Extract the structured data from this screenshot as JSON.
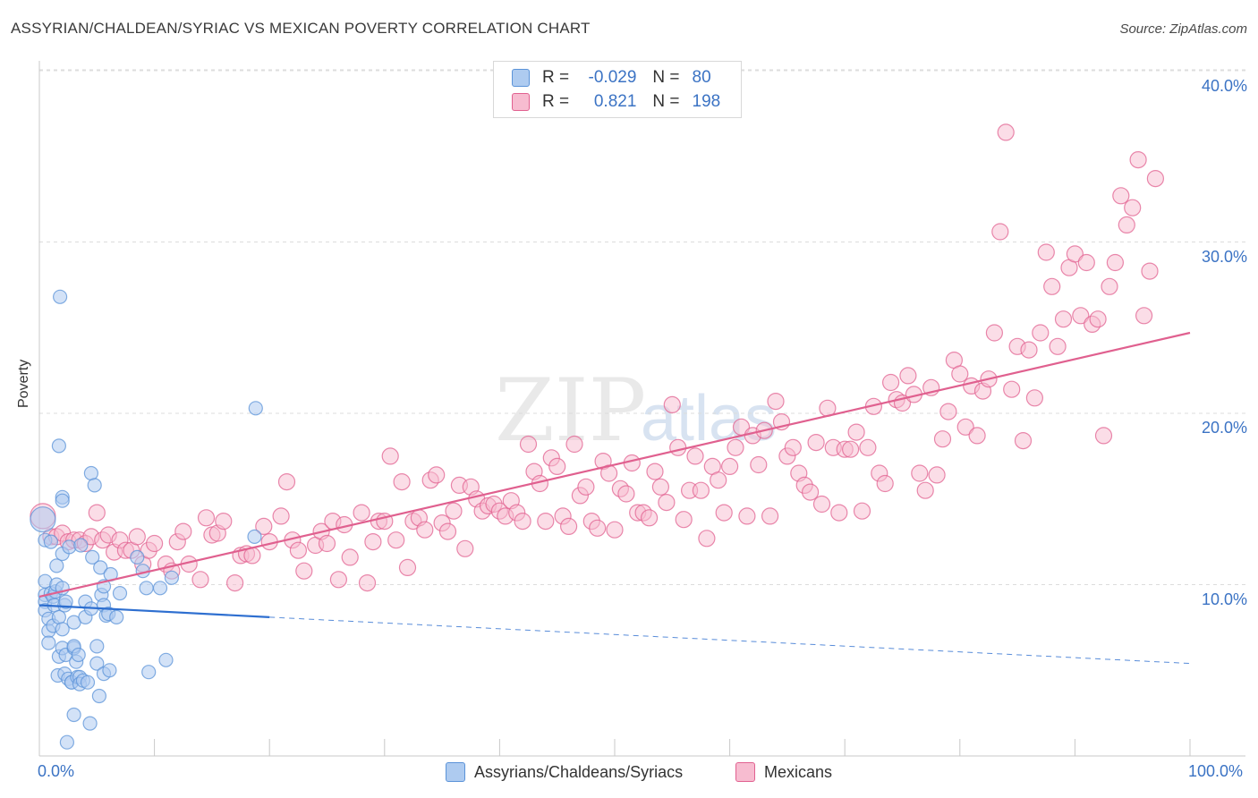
{
  "title": "ASSYRIAN/CHALDEAN/SYRIAC VS MEXICAN POVERTY CORRELATION CHART",
  "source": "Source: ZipAtlas.com",
  "watermark": {
    "zip": "ZIP",
    "atlas": "atlas"
  },
  "legend": {
    "r_label": "R =",
    "n_label": "N =",
    "rows": [
      {
        "r": "-0.029",
        "n": "80",
        "color": "#aecbf0"
      },
      {
        "r": "0.821",
        "n": "198",
        "color": "#f7bcd0"
      }
    ]
  },
  "bottom_legend": [
    {
      "label": "Assyrians/Chaldeans/Syriacs",
      "color": "#aecbf0"
    },
    {
      "label": "Mexicans",
      "color": "#f7bcd0"
    }
  ],
  "chart_data": {
    "type": "scatter",
    "xlabel": "",
    "ylabel": "Poverty",
    "xlim": [
      0,
      100
    ],
    "ylim": [
      0,
      40.0
    ],
    "x_tick_labels": [
      "0.0%",
      "100.0%"
    ],
    "y_tick_labels": [
      "10.0%",
      "20.0%",
      "30.0%",
      "40.0%"
    ],
    "y_ticks": [
      10,
      20,
      30,
      40
    ],
    "series": [
      {
        "name": "Assyrians/Chaldeans/Syriacs",
        "color": "#5b93d8",
        "fill": "#aecbf0",
        "trend": {
          "x0": 0,
          "y0": 8.8,
          "x1": 20,
          "y1": 8.1,
          "dash_to": 100,
          "dash_y": 5.4
        },
        "points": [
          [
            0.3,
            13.8
          ],
          [
            0.5,
            12.6
          ],
          [
            0.5,
            10.2
          ],
          [
            0.5,
            9.4
          ],
          [
            0.5,
            9.0
          ],
          [
            0.5,
            8.5
          ],
          [
            0.8,
            8.0
          ],
          [
            0.8,
            7.3
          ],
          [
            0.8,
            6.6
          ],
          [
            1.0,
            12.5
          ],
          [
            1.0,
            9.5
          ],
          [
            1.2,
            7.6
          ],
          [
            1.2,
            9.3
          ],
          [
            1.3,
            8.8
          ],
          [
            1.4,
            9.6
          ],
          [
            1.5,
            10.0
          ],
          [
            1.5,
            11.1
          ],
          [
            1.6,
            4.7
          ],
          [
            1.7,
            8.1
          ],
          [
            1.7,
            5.8
          ],
          [
            1.7,
            18.1
          ],
          [
            1.8,
            26.8
          ],
          [
            2.0,
            15.1
          ],
          [
            2.0,
            14.9
          ],
          [
            2.0,
            11.8
          ],
          [
            2.0,
            9.8
          ],
          [
            2.0,
            7.4
          ],
          [
            2.0,
            6.3
          ],
          [
            2.2,
            8.8
          ],
          [
            2.2,
            4.8
          ],
          [
            2.3,
            5.9
          ],
          [
            2.3,
            9.0
          ],
          [
            2.4,
            0.8
          ],
          [
            2.5,
            4.5
          ],
          [
            2.6,
            12.2
          ],
          [
            2.8,
            4.3
          ],
          [
            2.8,
            4.3
          ],
          [
            3.0,
            6.3
          ],
          [
            3.0,
            6.4
          ],
          [
            3.0,
            2.4
          ],
          [
            3.0,
            7.8
          ],
          [
            3.2,
            5.5
          ],
          [
            3.3,
            4.6
          ],
          [
            3.4,
            5.9
          ],
          [
            3.5,
            4.6
          ],
          [
            3.5,
            4.2
          ],
          [
            3.6,
            12.3
          ],
          [
            3.8,
            4.4
          ],
          [
            4.0,
            9.0
          ],
          [
            4.0,
            8.1
          ],
          [
            4.2,
            4.3
          ],
          [
            4.4,
            1.9
          ],
          [
            4.5,
            16.5
          ],
          [
            4.5,
            8.6
          ],
          [
            4.6,
            11.6
          ],
          [
            4.8,
            15.8
          ],
          [
            5.0,
            6.4
          ],
          [
            5.0,
            5.4
          ],
          [
            5.2,
            3.5
          ],
          [
            5.3,
            11.0
          ],
          [
            5.4,
            9.4
          ],
          [
            5.6,
            9.9
          ],
          [
            5.6,
            8.8
          ],
          [
            5.6,
            4.8
          ],
          [
            5.8,
            8.2
          ],
          [
            6.0,
            8.3
          ],
          [
            6.1,
            5.0
          ],
          [
            6.2,
            10.6
          ],
          [
            6.7,
            8.1
          ],
          [
            7.0,
            9.5
          ],
          [
            8.5,
            11.6
          ],
          [
            9.0,
            10.8
          ],
          [
            9.3,
            9.8
          ],
          [
            9.5,
            4.9
          ],
          [
            10.5,
            9.8
          ],
          [
            11.0,
            5.6
          ],
          [
            11.5,
            10.4
          ],
          [
            18.7,
            12.8
          ],
          [
            18.8,
            20.3
          ]
        ]
      },
      {
        "name": "Mexicans",
        "color": "#e16190",
        "fill": "#f7bcd0",
        "trend": {
          "x0": 0,
          "y0": 9.3,
          "x1": 100,
          "y1": 24.7
        },
        "points": [
          [
            0.3,
            14.0
          ],
          [
            1.0,
            12.8
          ],
          [
            1.5,
            12.8
          ],
          [
            2.0,
            13.0
          ],
          [
            2.5,
            12.5
          ],
          [
            3.0,
            12.6
          ],
          [
            3.5,
            12.6
          ],
          [
            4.0,
            12.4
          ],
          [
            4.5,
            12.8
          ],
          [
            5.0,
            14.2
          ],
          [
            5.5,
            12.6
          ],
          [
            6.0,
            12.9
          ],
          [
            6.5,
            11.9
          ],
          [
            7.0,
            12.6
          ],
          [
            7.5,
            12.0
          ],
          [
            8.0,
            12.0
          ],
          [
            8.5,
            12.8
          ],
          [
            9.0,
            11.2
          ],
          [
            9.5,
            12.0
          ],
          [
            10.0,
            12.4
          ],
          [
            11.0,
            11.2
          ],
          [
            11.5,
            10.8
          ],
          [
            12.0,
            12.5
          ],
          [
            12.5,
            13.1
          ],
          [
            13.0,
            11.2
          ],
          [
            14.0,
            10.3
          ],
          [
            14.5,
            13.9
          ],
          [
            15.0,
            12.9
          ],
          [
            15.5,
            13.0
          ],
          [
            16.0,
            13.7
          ],
          [
            17.0,
            10.1
          ],
          [
            17.5,
            11.7
          ],
          [
            18.0,
            11.8
          ],
          [
            18.5,
            11.7
          ],
          [
            19.5,
            13.4
          ],
          [
            20.0,
            12.5
          ],
          [
            21.0,
            14.0
          ],
          [
            21.5,
            16.0
          ],
          [
            22.0,
            12.6
          ],
          [
            22.5,
            12.0
          ],
          [
            23.0,
            10.8
          ],
          [
            24.0,
            12.3
          ],
          [
            24.5,
            13.1
          ],
          [
            25.0,
            12.4
          ],
          [
            25.5,
            13.7
          ],
          [
            26.0,
            10.3
          ],
          [
            26.5,
            13.5
          ],
          [
            27.0,
            11.6
          ],
          [
            28.0,
            14.2
          ],
          [
            28.5,
            10.1
          ],
          [
            29.0,
            12.5
          ],
          [
            29.5,
            13.7
          ],
          [
            30.0,
            13.7
          ],
          [
            30.5,
            17.5
          ],
          [
            31.0,
            12.6
          ],
          [
            31.5,
            16.0
          ],
          [
            32.0,
            11.0
          ],
          [
            32.5,
            13.7
          ],
          [
            33.0,
            13.9
          ],
          [
            33.5,
            13.2
          ],
          [
            34.0,
            16.1
          ],
          [
            34.5,
            16.4
          ],
          [
            35.0,
            13.6
          ],
          [
            35.5,
            13.1
          ],
          [
            36.0,
            14.3
          ],
          [
            36.5,
            15.8
          ],
          [
            37.0,
            12.1
          ],
          [
            37.5,
            15.7
          ],
          [
            38.0,
            15.0
          ],
          [
            38.5,
            14.3
          ],
          [
            39.0,
            14.6
          ],
          [
            39.5,
            14.7
          ],
          [
            40.0,
            14.3
          ],
          [
            40.5,
            14.0
          ],
          [
            41.0,
            14.9
          ],
          [
            41.5,
            14.2
          ],
          [
            42.0,
            13.7
          ],
          [
            42.5,
            18.2
          ],
          [
            43.0,
            16.6
          ],
          [
            43.5,
            15.9
          ],
          [
            44.0,
            13.7
          ],
          [
            44.5,
            17.4
          ],
          [
            45.0,
            16.9
          ],
          [
            45.5,
            14.0
          ],
          [
            46.0,
            13.4
          ],
          [
            46.5,
            18.2
          ],
          [
            47.0,
            15.2
          ],
          [
            47.5,
            15.7
          ],
          [
            48.0,
            13.7
          ],
          [
            48.5,
            13.3
          ],
          [
            49.0,
            17.2
          ],
          [
            49.5,
            16.5
          ],
          [
            50.0,
            13.2
          ],
          [
            50.5,
            15.6
          ],
          [
            51.0,
            15.3
          ],
          [
            51.5,
            17.1
          ],
          [
            52.0,
            14.2
          ],
          [
            52.5,
            14.2
          ],
          [
            53.0,
            13.9
          ],
          [
            53.5,
            16.6
          ],
          [
            54.0,
            15.7
          ],
          [
            54.5,
            14.8
          ],
          [
            55.0,
            20.5
          ],
          [
            55.5,
            18.0
          ],
          [
            56.0,
            13.8
          ],
          [
            56.5,
            15.5
          ],
          [
            57.0,
            17.5
          ],
          [
            57.5,
            15.5
          ],
          [
            58.0,
            12.7
          ],
          [
            58.5,
            16.9
          ],
          [
            59.0,
            16.1
          ],
          [
            59.5,
            14.2
          ],
          [
            60.0,
            16.9
          ],
          [
            60.5,
            18.0
          ],
          [
            61.0,
            19.2
          ],
          [
            61.5,
            14.0
          ],
          [
            62.0,
            18.7
          ],
          [
            62.5,
            17.0
          ],
          [
            63.0,
            19.0
          ],
          [
            63.5,
            14.0
          ],
          [
            64.0,
            20.7
          ],
          [
            64.5,
            19.5
          ],
          [
            65.0,
            17.5
          ],
          [
            65.5,
            18.0
          ],
          [
            66.0,
            16.5
          ],
          [
            66.5,
            15.8
          ],
          [
            67.0,
            15.4
          ],
          [
            67.5,
            18.3
          ],
          [
            68.0,
            14.7
          ],
          [
            68.5,
            20.3
          ],
          [
            69.0,
            18.0
          ],
          [
            69.5,
            14.2
          ],
          [
            70.0,
            17.9
          ],
          [
            70.5,
            17.9
          ],
          [
            71.0,
            18.9
          ],
          [
            71.5,
            14.3
          ],
          [
            72.0,
            18.0
          ],
          [
            72.5,
            20.4
          ],
          [
            73.0,
            16.5
          ],
          [
            73.5,
            15.9
          ],
          [
            74.0,
            21.8
          ],
          [
            74.5,
            20.8
          ],
          [
            75.0,
            20.6
          ],
          [
            75.5,
            22.2
          ],
          [
            76.0,
            21.1
          ],
          [
            76.5,
            16.5
          ],
          [
            77.0,
            15.5
          ],
          [
            77.5,
            21.5
          ],
          [
            78.0,
            16.4
          ],
          [
            78.5,
            18.5
          ],
          [
            79.0,
            20.1
          ],
          [
            79.5,
            23.1
          ],
          [
            80.0,
            22.3
          ],
          [
            80.5,
            19.2
          ],
          [
            81.0,
            21.6
          ],
          [
            81.5,
            18.7
          ],
          [
            82.0,
            21.3
          ],
          [
            82.5,
            22.0
          ],
          [
            83.0,
            24.7
          ],
          [
            83.5,
            30.6
          ],
          [
            84.0,
            36.4
          ],
          [
            84.5,
            21.4
          ],
          [
            85.0,
            23.9
          ],
          [
            85.5,
            18.4
          ],
          [
            86.0,
            23.7
          ],
          [
            86.5,
            20.9
          ],
          [
            87.0,
            24.7
          ],
          [
            87.5,
            29.4
          ],
          [
            88.0,
            27.4
          ],
          [
            88.5,
            23.9
          ],
          [
            89.0,
            25.5
          ],
          [
            89.5,
            28.5
          ],
          [
            90.0,
            29.3
          ],
          [
            90.5,
            25.7
          ],
          [
            91.0,
            28.8
          ],
          [
            91.5,
            25.2
          ],
          [
            92.0,
            25.5
          ],
          [
            92.5,
            18.7
          ],
          [
            93.0,
            27.4
          ],
          [
            93.5,
            28.8
          ],
          [
            94.0,
            32.7
          ],
          [
            94.5,
            31.0
          ],
          [
            95.0,
            32.0
          ],
          [
            95.5,
            34.8
          ],
          [
            96.0,
            25.7
          ],
          [
            96.5,
            28.3
          ],
          [
            97.0,
            33.7
          ]
        ]
      }
    ]
  }
}
